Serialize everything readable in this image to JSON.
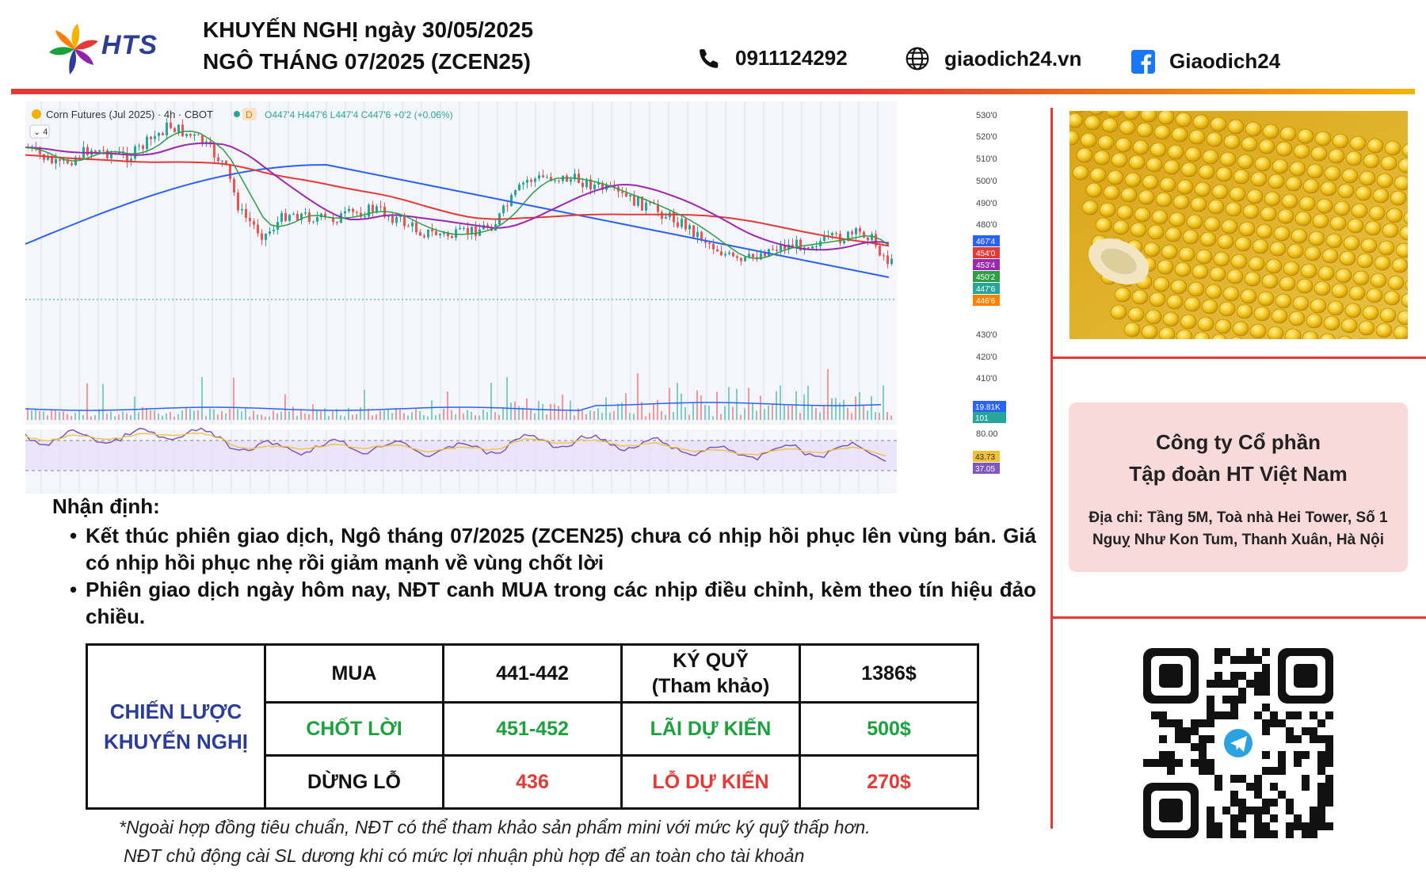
{
  "header": {
    "brand": "HTS",
    "title_line1": "KHUYẾN NGHỊ ngày 30/05/2025",
    "title_line2": "NGÔ THÁNG 07/2025 (ZCEN25)",
    "phone": "0911124292",
    "website": "giaodich24.vn",
    "facebook": "Giaodich24"
  },
  "chart": {
    "symbol_label": "Corn Futures (Jul 2025) · 4h · CBOT",
    "interval_badge": "D",
    "ohlc": "O447'4 H447'6 L447'4 C447'6 +0'2 (+0.06%)",
    "indicator_count": "4",
    "price_ticks": [
      "530'0",
      "520'0",
      "510'0",
      "500'0",
      "490'0",
      "480'0",
      "430'0",
      "420'0",
      "410'0"
    ],
    "price_badges": [
      {
        "label": "467'4",
        "color": "#2962ff"
      },
      {
        "label": "454'0",
        "color": "#e53935"
      },
      {
        "label": "453'4",
        "color": "#9c27b0"
      },
      {
        "label": "450'2",
        "color": "#2e9e44"
      },
      {
        "label": "447'6",
        "color": "#26a69a"
      },
      {
        "label": "446'6",
        "color": "#ff7f00"
      }
    ],
    "volume_badges": [
      {
        "label": "19.81K",
        "color": "#2962ff"
      },
      {
        "label": "101",
        "color": "#26a69a"
      }
    ],
    "rsi_ticks": [
      "80.00"
    ],
    "rsi_badges": [
      {
        "label": "43.73",
        "color": "#f2c037"
      },
      {
        "label": "37.05",
        "color": "#7e57c2"
      }
    ]
  },
  "analysis": {
    "heading": "Nhận định:",
    "bullets": [
      "Kết thúc phiên giao dịch, Ngô tháng 07/2025 (ZCEN25) chưa có nhịp hồi phục lên vùng bán. Giá có nhịp hồi phục nhẹ rồi giảm mạnh về vùng chốt lời",
      "Phiên giao dịch ngày hôm nay, NĐT canh MUA trong các nhịp điều chỉnh, kèm theo tín hiệu đảo chiều."
    ],
    "bullet_symbol": "•"
  },
  "strategy": {
    "header_line1": "CHIẾN LƯỢC",
    "header_line2": "KHUYẾN NGHỊ",
    "rows": [
      {
        "action": "MUA",
        "value": "441-442",
        "metric": "KÝ QUỸ (Tham khảo)",
        "metric_line1": "KÝ QUỸ",
        "metric_line2": "(Tham khảo)",
        "amount": "1386$"
      },
      {
        "action": "CHỐT LỜI",
        "value": "451-452",
        "metric": "LÃI DỰ KIẾN",
        "amount": "500$"
      },
      {
        "action": "DỪNG LỖ",
        "value": "436",
        "metric": "LỖ DỰ KIẾN",
        "amount": "270$"
      }
    ]
  },
  "note": {
    "line1": "*Ngoài hợp đồng tiêu chuẩn, NĐT có thể tham khảo sản phẩm mini với mức ký quỹ thấp hơn.",
    "line2": "NĐT chủ động cài SL dương khi có mức lợi nhuận phù hợp để an toàn cho tài khoản"
  },
  "company": {
    "name_line1": "Công ty Cổ phần",
    "name_line2": "Tập đoàn HT Việt Nam",
    "address_line1": "Địa chỉ: Tầng 5M, Toà nhà Hei Tower, Số 1",
    "address_line2": "Nguỵ Như Kon Tum, Thanh Xuân, Hà Nội"
  },
  "colors": {
    "accent_red": "#e53935",
    "brand_blue": "#2b3d99",
    "profit_green": "#1aa33c",
    "company_box": "#f9dadb"
  }
}
